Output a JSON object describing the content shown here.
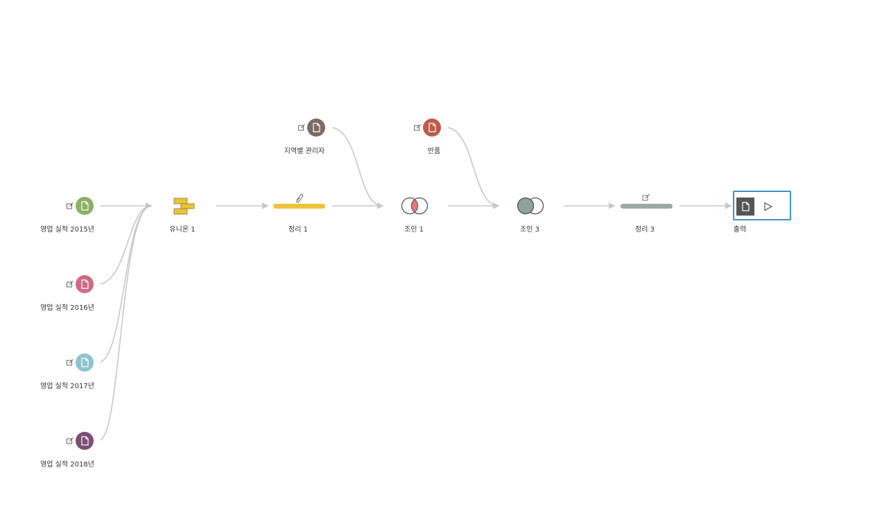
{
  "nodes": {
    "sales_2015": {
      "label": "영업 실적 2015년",
      "color": "#8cb066"
    },
    "sales_2016": {
      "label": "영업 실적 2016년",
      "color": "#d16a86"
    },
    "sales_2017": {
      "label": "영업 실적 2017년",
      "color": "#8ec3cf"
    },
    "sales_2018": {
      "label": "영업 실적 2018년",
      "color": "#7b4f76"
    },
    "union1": {
      "label": "유니온 1",
      "color": "#e9c43a"
    },
    "clean1": {
      "label": "정리 1",
      "color": "#efc23b"
    },
    "region_manager": {
      "label": "지역별 관리자",
      "color": "#7b6b63"
    },
    "join1": {
      "label": "조인 1",
      "color": "#e8777c"
    },
    "returns": {
      "label": "반품",
      "color": "#be5b4a"
    },
    "join3": {
      "label": "조인 3",
      "color": "#8fa398"
    },
    "clean3": {
      "label": "정리 3",
      "color": "#9aaaa0"
    },
    "output": {
      "label": "출력",
      "color": "#555555"
    }
  },
  "connector_color": "#c8c8c8",
  "selection_color": "#3f8fd2",
  "icons": {
    "input_edit": "edit-icon",
    "input_doc": "document-icon",
    "union": "union-icon",
    "clean_attachment": "paperclip-icon",
    "join": "venn-join-icon",
    "output_doc": "document-icon",
    "output_run": "play-icon"
  }
}
